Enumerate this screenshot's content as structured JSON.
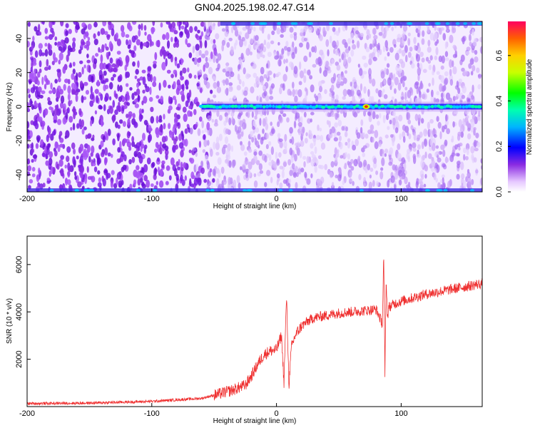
{
  "chart_data": [
    {
      "type": "heatmap",
      "title": "GN04.2025.198.02.47.G14",
      "xlabel": "Height of straight line (km)",
      "ylabel": "Frequency (Hz)",
      "xlim": [
        -200,
        165
      ],
      "ylim": [
        -50,
        50
      ],
      "xticks": [
        "-200",
        "-100",
        "0",
        "100"
      ],
      "yticks": [
        "-40",
        "-20",
        "0",
        "20",
        "40"
      ],
      "colorbar": {
        "label": "Normalized spectral amplitude",
        "range": [
          0,
          0.75
        ],
        "ticks": [
          "0.0",
          "0.2",
          "0.4",
          "0.6"
        ]
      },
      "features": [
        {
          "name": "carrier",
          "freq_hz": 0,
          "x_start_km": -60,
          "x_end_km": 165,
          "peak_x_km": 72,
          "peak_amplitude": 0.7
        },
        {
          "name": "edge",
          "freq_hz": 50,
          "x_start_km": -45,
          "x_end_km": 165
        },
        {
          "name": "edge",
          "freq_hz": -50,
          "x_start_km": -200,
          "x_end_km": 165
        }
      ],
      "noise_boundary_km": -60,
      "grid": false
    },
    {
      "type": "line",
      "xlabel": "Height of straight line (km)",
      "ylabel": "SNR (10 * v/v)",
      "xlim": [
        -200,
        165
      ],
      "ylim": [
        0,
        7200
      ],
      "xticks": [
        "-200",
        "-100",
        "0",
        "100"
      ],
      "yticks": [
        "2000",
        "4000",
        "6000"
      ],
      "color": "#ef3030",
      "series": [
        {
          "x": [
            -200,
            -150,
            -100,
            -60,
            -45,
            -35,
            -25,
            -20,
            -15,
            -10,
            -5,
            0,
            4,
            6,
            8,
            10,
            12,
            15,
            20,
            25,
            30,
            40,
            50,
            60,
            70,
            80,
            85,
            86,
            87,
            88,
            89,
            90,
            95,
            100,
            110,
            120,
            130,
            140,
            150,
            160,
            165
          ],
          "y": [
            130,
            150,
            220,
            350,
            550,
            700,
            900,
            1300,
            1800,
            2200,
            2350,
            2400,
            3000,
            1000,
            4700,
            900,
            2500,
            3000,
            3400,
            3600,
            3750,
            3850,
            3950,
            4000,
            4050,
            4100,
            3500,
            6500,
            1300,
            5500,
            3700,
            4200,
            4350,
            4450,
            4600,
            4750,
            4850,
            4950,
            5050,
            5150,
            5200
          ]
        }
      ]
    }
  ]
}
